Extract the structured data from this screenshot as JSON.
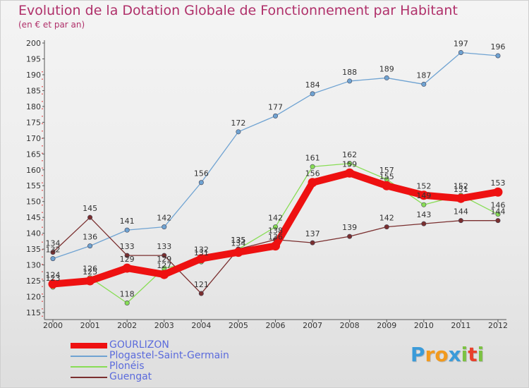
{
  "title": "Evolution de la Dotation Globale de Fonctionnement par Habitant",
  "subtitle": "(en € et par an)",
  "logo": {
    "letters": [
      "P",
      "r",
      "o",
      "x",
      "i",
      "t",
      "i"
    ],
    "colors": [
      "#3b9bd9",
      "#f29a1e",
      "#f29a1e",
      "#3b9bd9",
      "#7cc242",
      "#e8412c",
      "#7cc242"
    ]
  },
  "chart_data": {
    "type": "line",
    "title": "Evolution de la Dotation Globale de Fonctionnement par Habitant",
    "subtitle": "(en € et par an)",
    "xlabel": "",
    "ylabel": "",
    "x": [
      "2000",
      "2001",
      "2002",
      "2003",
      "2004",
      "2005",
      "2006",
      "2007",
      "2008",
      "2009",
      "2010",
      "2011",
      "2012"
    ],
    "ylim": [
      115,
      200
    ],
    "yticks": [
      115,
      120,
      125,
      130,
      135,
      140,
      145,
      150,
      155,
      160,
      165,
      170,
      175,
      180,
      185,
      190,
      195,
      200
    ],
    "grid": false,
    "legend_position": "bottom-left",
    "series": [
      {
        "name": "GOURLIZON",
        "color": "#ee1111",
        "values": [
          124,
          125,
          129,
          127,
          132,
          134,
          136,
          156,
          159,
          155,
          152,
          151,
          153
        ]
      },
      {
        "name": "Plogastel-Saint-Germain",
        "color": "#6fa3d2",
        "values": [
          132,
          136,
          141,
          142,
          156,
          172,
          177,
          184,
          188,
          189,
          187,
          197,
          196
        ]
      },
      {
        "name": "Plonéis",
        "color": "#88dd55",
        "values": [
          123,
          126,
          118,
          129,
          131,
          135,
          142,
          161,
          162,
          157,
          149,
          152,
          146
        ]
      },
      {
        "name": "Guengat",
        "color": "#7a2f2f",
        "values": [
          134,
          145,
          133,
          133,
          121,
          135,
          138,
          137,
          139,
          142,
          143,
          144,
          144
        ]
      }
    ]
  }
}
